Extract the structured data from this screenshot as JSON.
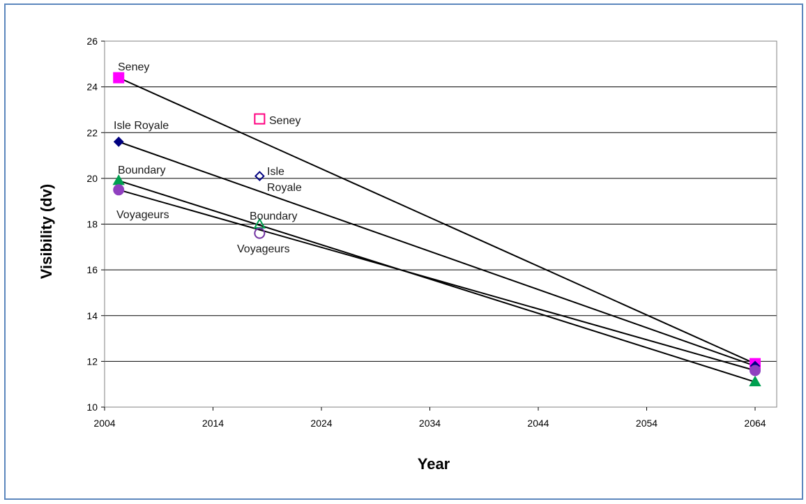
{
  "chart_data": {
    "type": "scatter",
    "xlabel": "Year",
    "ylabel": "Visibility (dv)",
    "xlim": [
      2004,
      2067
    ],
    "ylim": [
      10,
      26
    ],
    "xticks": [
      2004,
      2014,
      2024,
      2034,
      2044,
      2054,
      2064
    ],
    "yticks": [
      10,
      12,
      14,
      16,
      18,
      20,
      22,
      24,
      26
    ],
    "grid": "horizontal",
    "series": [
      {
        "name": "Seney",
        "color": "#ff00ff",
        "marker": "square",
        "glidepath": [
          [
            2005.3,
            24.4
          ],
          [
            2064,
            11.9
          ]
        ],
        "current": [
          2018.3,
          22.6
        ],
        "current_color": "#ff0080"
      },
      {
        "name": "Isle Royale",
        "color": "#000080",
        "marker": "diamond",
        "glidepath": [
          [
            2005.3,
            21.6
          ],
          [
            2064,
            11.8
          ]
        ],
        "current": [
          2018.3,
          20.1
        ],
        "current_color": "#000080"
      },
      {
        "name": "Boundary",
        "color": "#00a050",
        "marker": "triangle",
        "glidepath": [
          [
            2005.3,
            19.9
          ],
          [
            2064,
            11.1
          ]
        ],
        "current": [
          2018.3,
          18.0
        ],
        "current_color": "#00a050"
      },
      {
        "name": "Voyageurs",
        "color": "#9040c0",
        "marker": "circle",
        "glidepath": [
          [
            2005.3,
            19.5
          ],
          [
            2064,
            11.6
          ]
        ],
        "current": [
          2018.3,
          17.6
        ],
        "current_color": "#7030a0"
      }
    ],
    "annotations": {
      "start_labels": [
        "Seney",
        "Isle Royale",
        "Boundary",
        "Voyageurs"
      ],
      "current_labels": [
        "Seney",
        "Isle",
        "Royale",
        "Boundary",
        "Voyageurs"
      ]
    }
  }
}
